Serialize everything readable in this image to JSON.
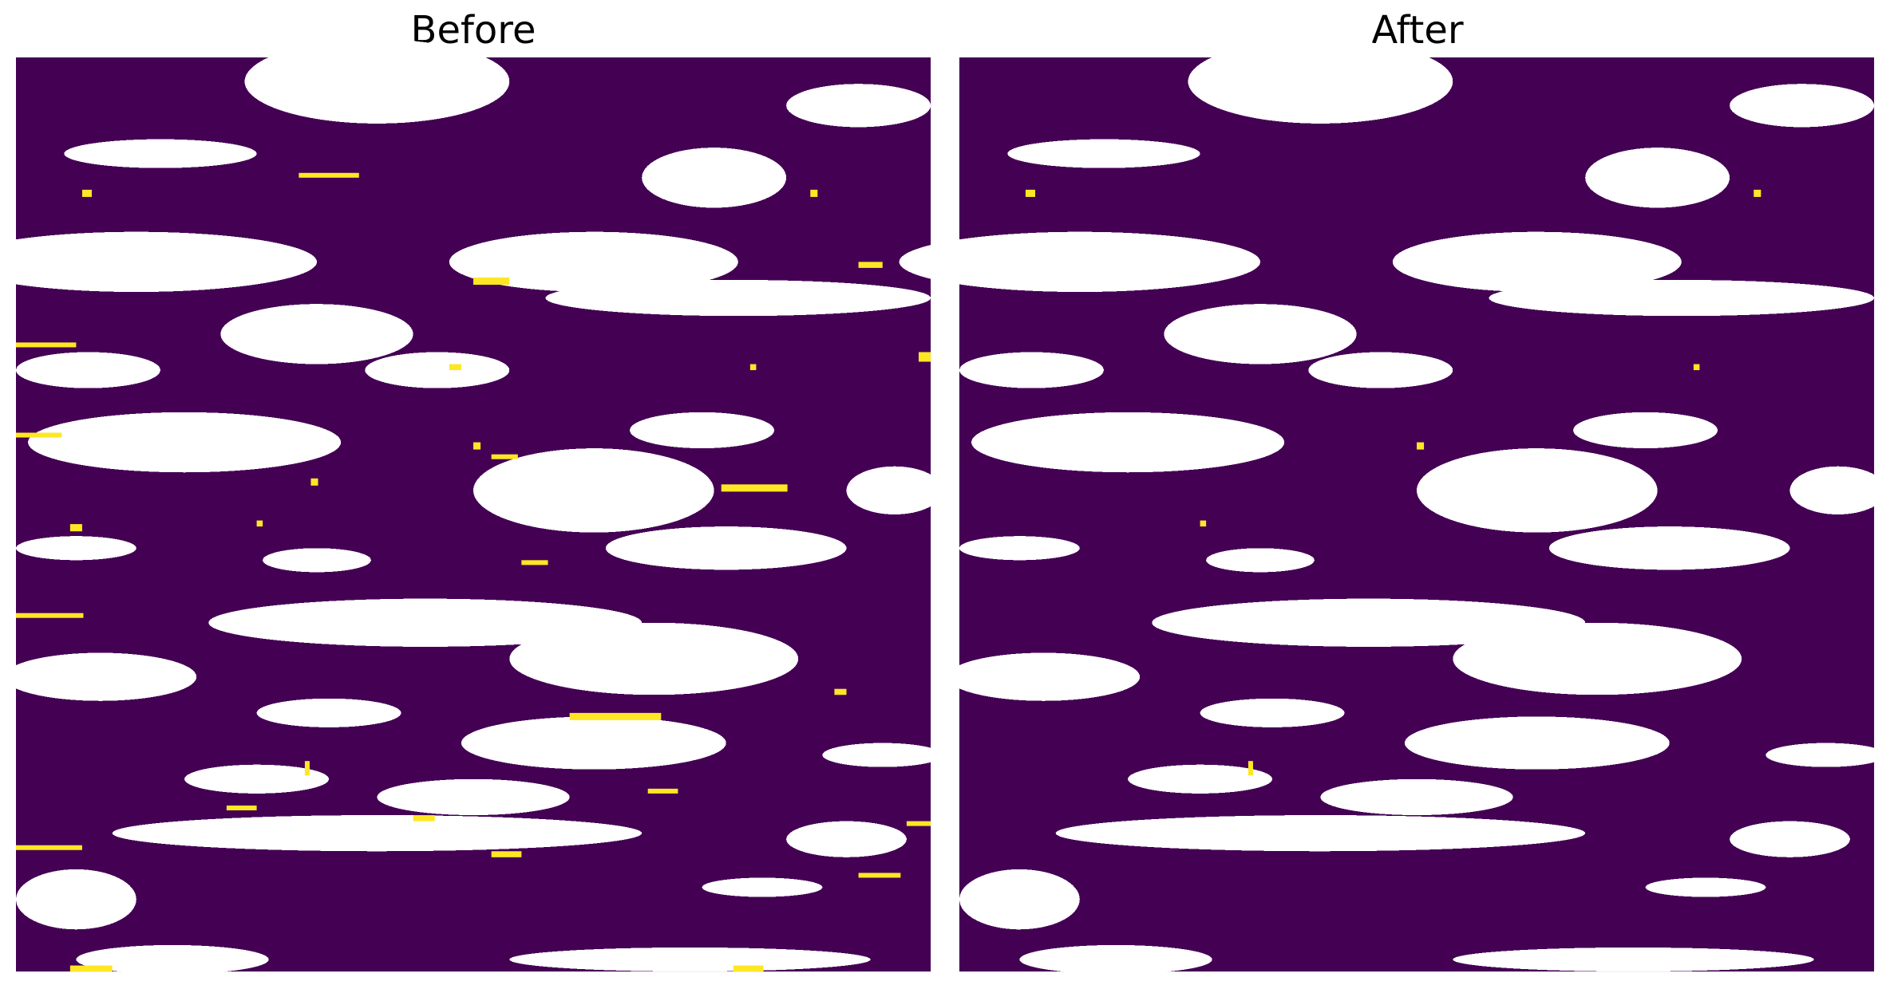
{
  "panels": [
    {
      "title": "Before"
    },
    {
      "title": "After"
    }
  ]
}
